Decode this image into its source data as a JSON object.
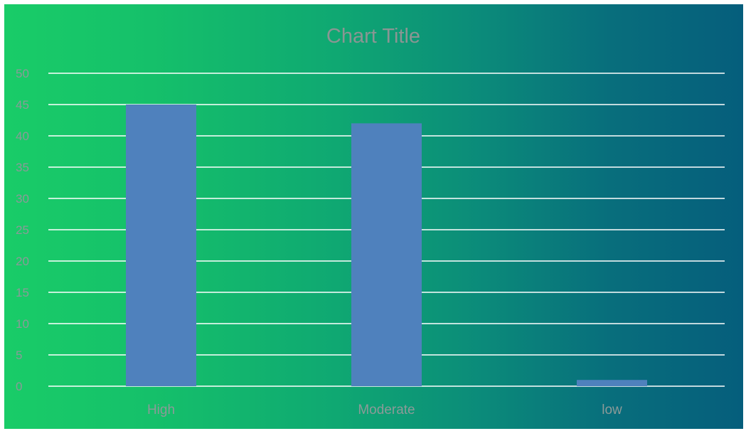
{
  "chart_data": {
    "type": "bar",
    "title": "Chart Title",
    "categories": [
      "High",
      "Moderate",
      "low"
    ],
    "values": [
      45,
      42,
      1
    ],
    "xlabel": "",
    "ylabel": "",
    "ylim": [
      0,
      50
    ],
    "yticks": [
      "0",
      "5",
      "10",
      "15",
      "20",
      "25",
      "30",
      "35",
      "40",
      "45",
      "50"
    ],
    "grid": true,
    "legend": "none",
    "colors": {
      "bar": "#4f81bd",
      "gridline": "#ffffff",
      "background_start": "#19cc68",
      "background_end": "#055e7c"
    }
  }
}
